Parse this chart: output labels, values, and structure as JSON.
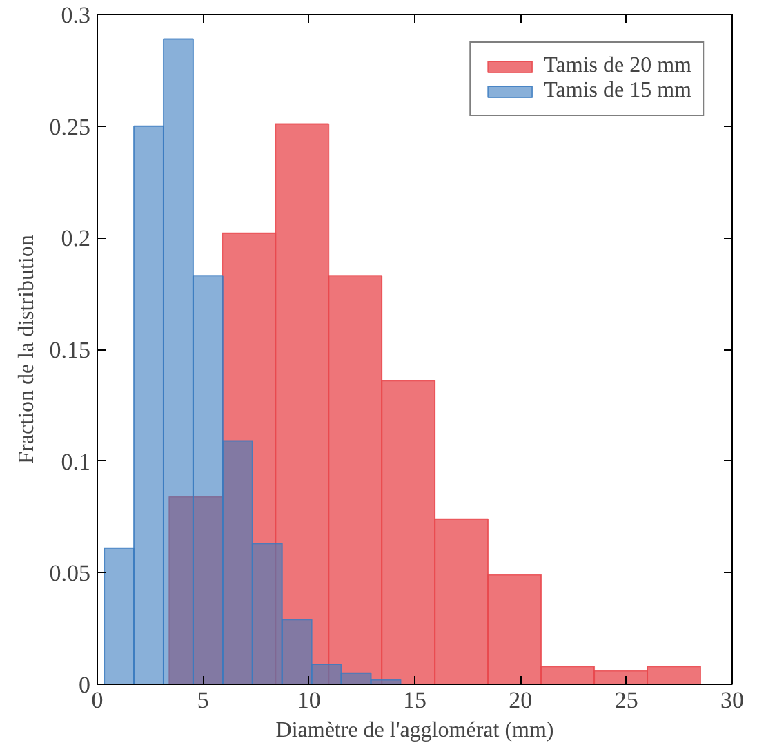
{
  "chart_data": {
    "type": "histogram",
    "xlabel": "Diamètre de l'agglomérat (mm)",
    "ylabel": "Fraction de la distribution",
    "xlim": [
      0,
      30
    ],
    "ylim": [
      0,
      0.3
    ],
    "xticks": [
      0,
      5,
      10,
      15,
      20,
      25,
      30
    ],
    "yticks": [
      0,
      0.05,
      0.1,
      0.15,
      0.2,
      0.25,
      0.3
    ],
    "grid": false,
    "legend": "top right",
    "bins": [
      3.4,
      5.91,
      8.42,
      10.93,
      13.44,
      15.95,
      18.46,
      20.97,
      23.48,
      25.99,
      28.5
    ],
    "series": [
      {
        "name": "Tamis de 20 mm",
        "color": "#e8474c",
        "values": [
          0.084,
          0.202,
          0.251,
          0.183,
          0.136,
          0.074,
          0.049,
          0.008,
          0.006,
          0.008
        ]
      },
      {
        "name": "Tamis de 15 mm",
        "color": "#3a7bbf",
        "bins": [
          0.33,
          1.73,
          3.13,
          4.53,
          5.93,
          7.33,
          8.73,
          10.13,
          11.53,
          12.93,
          14.33
        ],
        "values": [
          0.061,
          0.25,
          0.289,
          0.183,
          0.109,
          0.063,
          0.029,
          0.009,
          0.005,
          0.002
        ]
      }
    ]
  }
}
